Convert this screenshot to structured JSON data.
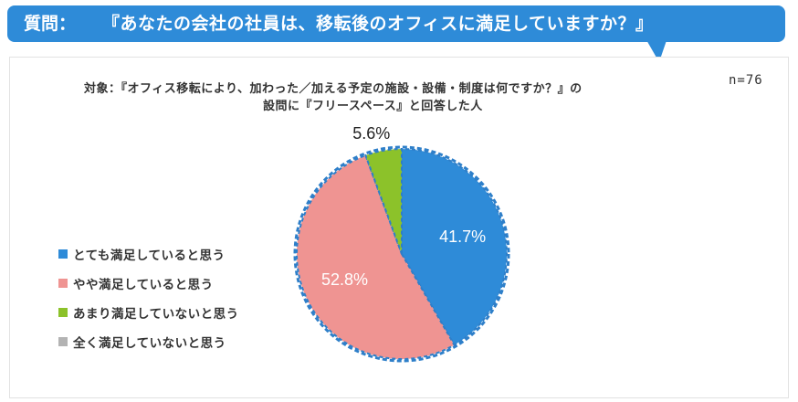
{
  "header": {
    "prefix": "質問：",
    "question": "『あなたの会社の社員は、移転後のオフィスに満足していますか？』"
  },
  "subject": {
    "line1": "対象：『オフィス移転により、加わった／加える予定の施設・設備・制度は何ですか？』の",
    "line2": "設問に『フリースペース』と回答した人"
  },
  "sample_size": "n=76",
  "colors": {
    "banner": "#2e8bd8",
    "very_satisfied": "#2e8bd8",
    "somewhat_satisfied": "#ef9492",
    "not_very_satisfied": "#8cc22a",
    "not_at_all_satisfied": "#b3b3b3"
  },
  "chart_data": {
    "type": "pie",
    "title": "",
    "series": [
      {
        "name": "とても満足していると思う",
        "value": 41.7,
        "label": "41.7%",
        "color": "#2e8bd8"
      },
      {
        "name": "やや満足していると思う",
        "value": 52.8,
        "label": "52.8%",
        "color": "#ef9492"
      },
      {
        "name": "あまり満足していないと思う",
        "value": 5.6,
        "label": "5.6%",
        "color": "#8cc22a"
      },
      {
        "name": "全く満足していないと思う",
        "value": 0,
        "label": "",
        "color": "#b3b3b3"
      }
    ],
    "legend_placement": "left",
    "start_angle": "top",
    "direction": "clockwise",
    "outline_style": "dashed"
  }
}
